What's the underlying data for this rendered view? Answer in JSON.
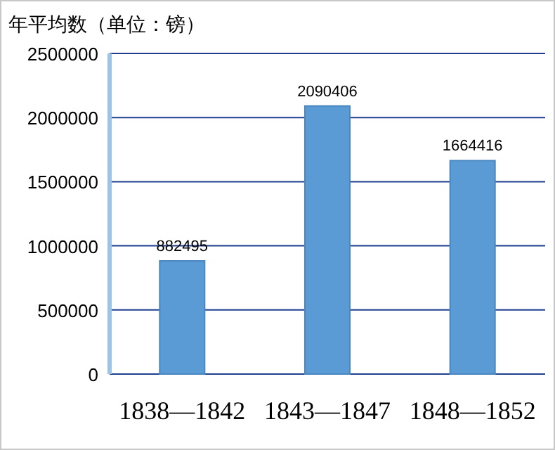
{
  "chart_data": {
    "type": "bar",
    "ylabel": "年平均数（单位：镑）",
    "categories": [
      "1838—1842",
      "1843—1847",
      "1848—1852"
    ],
    "values": [
      882495,
      2090406,
      1664416
    ],
    "color": "#5b9bd5",
    "ylim": [
      0,
      2500000
    ],
    "yticks": [
      0,
      500000,
      1000000,
      1500000,
      2000000,
      2500000
    ],
    "grid": "y",
    "data_labels": true
  }
}
